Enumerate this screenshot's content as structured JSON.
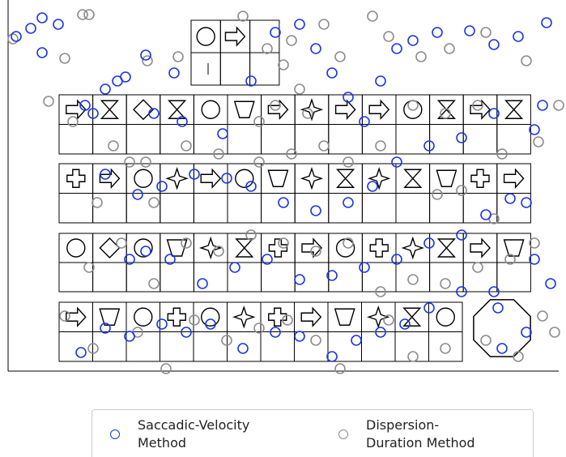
{
  "chart_data": {
    "type": "scatter",
    "xlim": [
      0,
      680
    ],
    "ylim": [
      458,
      0
    ],
    "series": [
      {
        "name": "Saccadic-Velocity Method",
        "color": "#1a35e8",
        "x": [
          10,
          28,
          42,
          62,
          42,
          170,
          205,
          135,
          145,
          120,
          95,
          105,
          180,
          215,
          265,
          300,
          330,
          360,
          380,
          400,
          420,
          440,
          460,
          480,
          500,
          530,
          570,
          600,
          630,
          665,
          660,
          650,
          600,
          560,
          520,
          480,
          450,
          420,
          380,
          340,
          300,
          270,
          230,
          190,
          160,
          120,
          620,
          640,
          590,
          560,
          520,
          480,
          440,
          400,
          360,
          320,
          280,
          240,
          200,
          170,
          150,
          650,
          670,
          600,
          560,
          520,
          490,
          460,
          430,
          400,
          360,
          330,
          290,
          250,
          220,
          190,
          150,
          120,
          90,
          610,
          640,
          605
        ],
        "values": [
          45,
          35,
          22,
          30,
          65,
          68,
          90,
          100,
          95,
          110,
          130,
          140,
          140,
          150,
          165,
          100,
          40,
          30,
          60,
          90,
          120,
          150,
          100,
          60,
          50,
          40,
          38,
          55,
          45,
          28,
          130,
          160,
          140,
          170,
          180,
          200,
          230,
          250,
          260,
          250,
          230,
          220,
          215,
          230,
          240,
          215,
          245,
          250,
          265,
          290,
          300,
          320,
          330,
          340,
          345,
          320,
          330,
          350,
          320,
          310,
          320,
          320,
          350,
          360,
          360,
          380,
          400,
          410,
          420,
          440,
          415,
          410,
          430,
          400,
          410,
          400,
          415,
          405,
          435,
          430,
          410,
          380
        ]
      },
      {
        "name": "Dispersion-Duration Method",
        "color": "#8c8c8c",
        "x": [
          6,
          92,
          100,
          70,
          172,
          210,
          50,
          80,
          130,
          170,
          290,
          320,
          340,
          350,
          360,
          370,
          330,
          310,
          390,
          410,
          450,
          470,
          510,
          545,
          590,
          640,
          680,
          655,
          610,
          580,
          540,
          500,
          460,
          420,
          390,
          350,
          310,
          260,
          220,
          180,
          150,
          110,
          530,
          560,
          600,
          650,
          620,
          580,
          540,
          500,
          460,
          420,
          380,
          340,
          300,
          260,
          220,
          180,
          140,
          100,
          660,
          675,
          630,
          590,
          540,
          500,
          470,
          410,
          380,
          345,
          310,
          270,
          230,
          195,
          160,
          105,
          70
        ],
        "values": [
          48,
          18,
          18,
          72,
          75,
          70,
          125,
          150,
          180,
          200,
          20,
          60,
          80,
          50,
          110,
          140,
          130,
          150,
          30,
          70,
          20,
          45,
          70,
          60,
          40,
          75,
          130,
          175,
          190,
          130,
          140,
          130,
          180,
          200,
          180,
          190,
          200,
          190,
          180,
          250,
          200,
          250,
          240,
          235,
          270,
          300,
          320,
          330,
          350,
          345,
          360,
          300,
          310,
          300,
          290,
          310,
          300,
          350,
          300,
          330,
          390,
          410,
          440,
          420,
          430,
          440,
          395,
          455,
          420,
          395,
          405,
          420,
          395,
          455,
          410,
          430,
          390
        ]
      }
    ]
  }
}
